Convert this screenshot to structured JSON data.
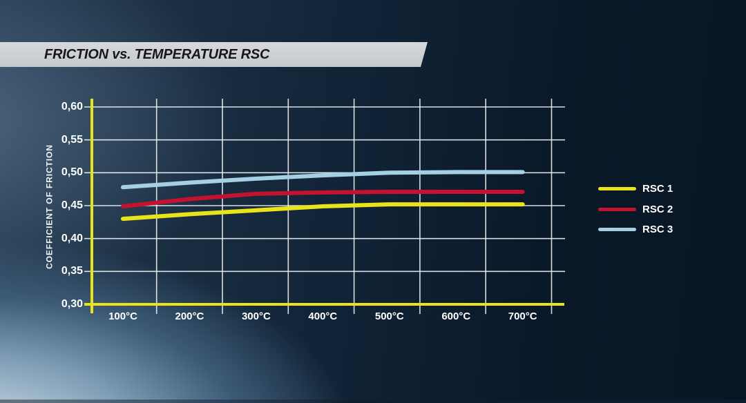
{
  "title": {
    "text": "FRICTION vs. TEMPERATURE RSC"
  },
  "chart_data": {
    "type": "line",
    "title": "FRICTION vs. TEMPERATURE RSC",
    "xlabel": "",
    "ylabel": "COEFFICIENT OF FRICTION",
    "categories": [
      "100°C",
      "200°C",
      "300°C",
      "400°C",
      "500°C",
      "600°C",
      "700°C"
    ],
    "x_values_celsius": [
      100,
      200,
      300,
      400,
      500,
      600,
      700
    ],
    "ylim": [
      0.3,
      0.6
    ],
    "ytick_values": [
      0.6,
      0.55,
      0.5,
      0.45,
      0.4,
      0.35,
      0.3
    ],
    "ytick_labels": [
      "0,60",
      "0,55",
      "0,50",
      "0,45",
      "0,40",
      "0,35",
      "0,30"
    ],
    "grid": true,
    "legend_position": "right",
    "axis_color": "#e9e41a",
    "grid_color": "#ffffff",
    "series": [
      {
        "name": "RSC 1",
        "color": "#e9e41a",
        "values": [
          0.43,
          0.437,
          0.443,
          0.449,
          0.452,
          0.452,
          0.452
        ]
      },
      {
        "name": "RSC 2",
        "color": "#c51230",
        "values": [
          0.449,
          0.46,
          0.468,
          0.47,
          0.471,
          0.471,
          0.471
        ]
      },
      {
        "name": "RSC 3",
        "color": "#a5cfe3",
        "values": [
          0.478,
          0.485,
          0.491,
          0.496,
          0.5,
          0.501,
          0.501
        ]
      }
    ]
  }
}
